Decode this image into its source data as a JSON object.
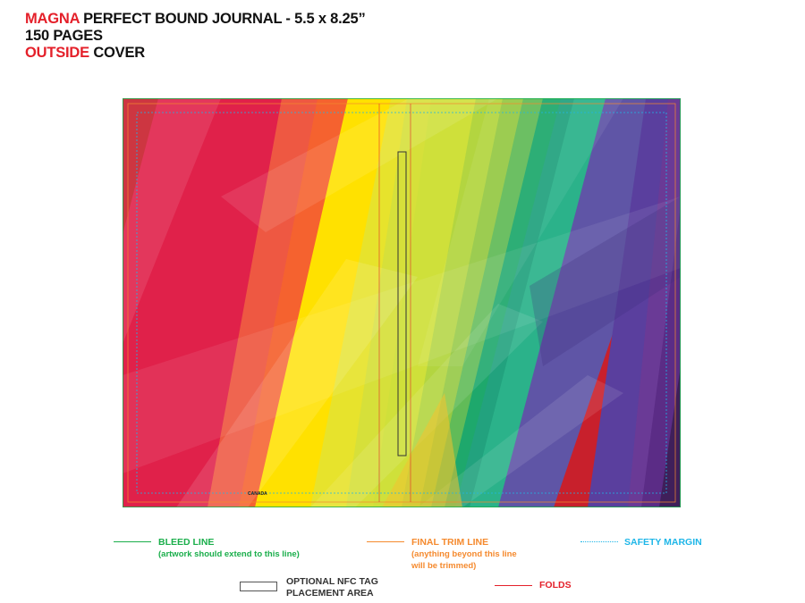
{
  "header": {
    "line1_brand": "MAGNA",
    "line1_rest": " PERFECT BOUND JOURNAL - 5.5 x 8.25”",
    "line2": "150 PAGES",
    "line3_accent": "OUTSIDE",
    "line3_rest": " COVER"
  },
  "artwork": {
    "back_cover_text": "CANADA"
  },
  "legend": {
    "bleed": {
      "label": "BLEED LINE",
      "note": "(artwork should extend to this line)",
      "color": "#1aae4b",
      "line_style": "solid"
    },
    "trim": {
      "label": "FINAL TRIM LINE",
      "note_1": "(anything beyond this line",
      "note_2": "will be trimmed)",
      "color": "#f58a2e",
      "line_style": "solid"
    },
    "safety": {
      "label": "SAFETY MARGIN",
      "color": "#1eb6e8",
      "line_style": "dotted"
    },
    "nfc": {
      "label_1": "OPTIONAL NFC TAG",
      "label_2": "PLACEMENT AREA",
      "color": "#333333",
      "icon": "outline-rectangle"
    },
    "folds": {
      "label": "FOLDS",
      "color": "#e4202a",
      "line_style": "solid"
    }
  }
}
